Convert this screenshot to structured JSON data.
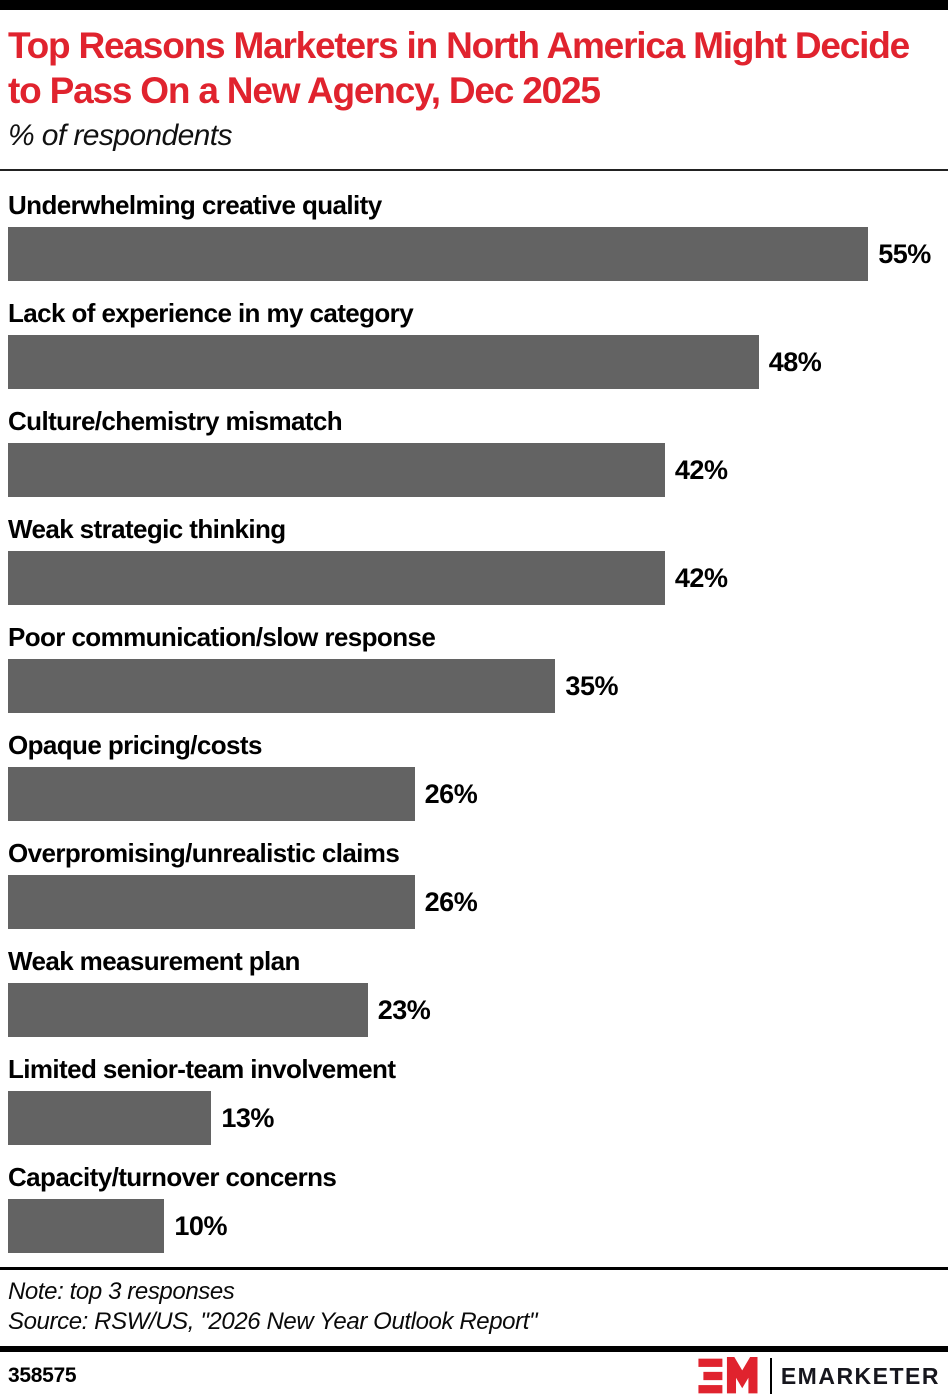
{
  "header": {
    "title": "Top Reasons Marketers in North America Might Decide to Pass On a New Agency, Dec 2025",
    "subtitle": "% of respondents"
  },
  "chart_data": {
    "type": "bar",
    "orientation": "horizontal",
    "title": "Top Reasons Marketers in North America Might Decide to Pass On a New Agency, Dec 2025",
    "subtitle": "% of respondents",
    "categories": [
      "Underwhelming creative quality",
      "Lack of experience in my category",
      "Culture/chemistry mismatch",
      "Weak strategic thinking",
      "Poor communication/slow response",
      "Opaque pricing/costs",
      "Overpromising/unrealistic claims",
      "Weak measurement plan",
      "Limited senior-team involvement",
      "Capacity/turnover concerns"
    ],
    "values": [
      55,
      48,
      42,
      42,
      35,
      26,
      26,
      23,
      13,
      10
    ],
    "value_suffix": "%",
    "bar_color": "#636363",
    "xlim": [
      0,
      55
    ],
    "grid": false,
    "legend": false,
    "layout": {
      "max_bar_width_pct": 92.3
    }
  },
  "footer": {
    "note": "Note: top 3 responses",
    "source": "Source: RSW/US, \"2026 New Year Outlook Report\"",
    "chart_id": "358575",
    "brand": "EMARKETER",
    "brand_color": "#e0232e"
  }
}
